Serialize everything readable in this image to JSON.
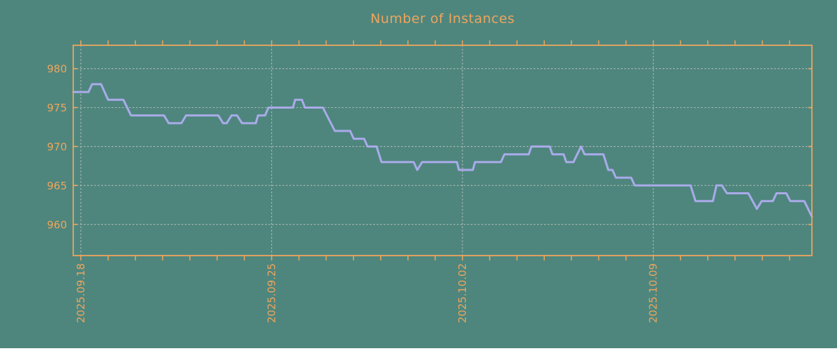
{
  "chart_data": {
    "type": "line",
    "title": "Number of Instances",
    "xlabel": "",
    "ylabel": "",
    "x_unit": "days since 2025.09.18",
    "xlim": [
      -0.28,
      26.82
    ],
    "ylim": [
      956,
      983
    ],
    "grid": true,
    "legend": "none",
    "y_ticks": [
      960,
      965,
      970,
      975,
      980
    ],
    "x_major_ticks": [
      {
        "day": 0,
        "label": "2025.09.18"
      },
      {
        "day": 7,
        "label": "2025.09.25"
      },
      {
        "day": 14,
        "label": "2025.10.02"
      },
      {
        "day": 21,
        "label": "2025.10.09"
      }
    ],
    "x_minor_tick_interval_days": 1,
    "colors": {
      "background": "#4e867e",
      "axis": "#eea55c",
      "grid": "#b9bfb6",
      "line": "#a9abe9"
    },
    "series": [
      {
        "name": "instances",
        "color": "#a9abe9",
        "points": [
          [
            -0.28,
            977
          ],
          [
            0.28,
            977
          ],
          [
            0.41,
            978
          ],
          [
            0.74,
            978
          ],
          [
            1.0,
            976
          ],
          [
            1.56,
            976
          ],
          [
            1.84,
            974
          ],
          [
            3.05,
            974
          ],
          [
            3.22,
            973
          ],
          [
            3.69,
            973
          ],
          [
            3.86,
            974
          ],
          [
            5.04,
            974
          ],
          [
            5.22,
            973
          ],
          [
            5.35,
            973
          ],
          [
            5.53,
            974
          ],
          [
            5.73,
            974
          ],
          [
            5.91,
            973
          ],
          [
            6.42,
            973
          ],
          [
            6.5,
            974
          ],
          [
            6.76,
            974
          ],
          [
            6.88,
            975
          ],
          [
            7.78,
            975
          ],
          [
            7.86,
            976
          ],
          [
            8.11,
            976
          ],
          [
            8.22,
            975
          ],
          [
            8.88,
            975
          ],
          [
            9.32,
            972
          ],
          [
            9.88,
            972
          ],
          [
            10.01,
            971
          ],
          [
            10.39,
            971
          ],
          [
            10.52,
            970
          ],
          [
            10.85,
            970
          ],
          [
            11.03,
            968
          ],
          [
            12.21,
            968
          ],
          [
            12.34,
            967
          ],
          [
            12.52,
            968
          ],
          [
            13.8,
            968
          ],
          [
            13.87,
            967
          ],
          [
            14.38,
            967
          ],
          [
            14.46,
            968
          ],
          [
            15.41,
            968
          ],
          [
            15.54,
            969
          ],
          [
            16.43,
            969
          ],
          [
            16.53,
            970
          ],
          [
            17.2,
            970
          ],
          [
            17.3,
            969
          ],
          [
            17.71,
            969
          ],
          [
            17.81,
            968
          ],
          [
            18.07,
            968
          ],
          [
            18.35,
            970
          ],
          [
            18.48,
            969
          ],
          [
            19.17,
            969
          ],
          [
            19.35,
            967
          ],
          [
            19.5,
            967
          ],
          [
            19.63,
            966
          ],
          [
            20.19,
            966
          ],
          [
            20.32,
            965
          ],
          [
            22.37,
            965
          ],
          [
            22.55,
            963
          ],
          [
            23.19,
            963
          ],
          [
            23.32,
            965
          ],
          [
            23.52,
            965
          ],
          [
            23.7,
            964
          ],
          [
            24.49,
            964
          ],
          [
            24.8,
            962
          ],
          [
            24.98,
            963
          ],
          [
            25.39,
            963
          ],
          [
            25.52,
            964
          ],
          [
            25.88,
            964
          ],
          [
            26.03,
            963
          ],
          [
            26.54,
            963
          ],
          [
            26.82,
            961
          ]
        ]
      }
    ]
  }
}
